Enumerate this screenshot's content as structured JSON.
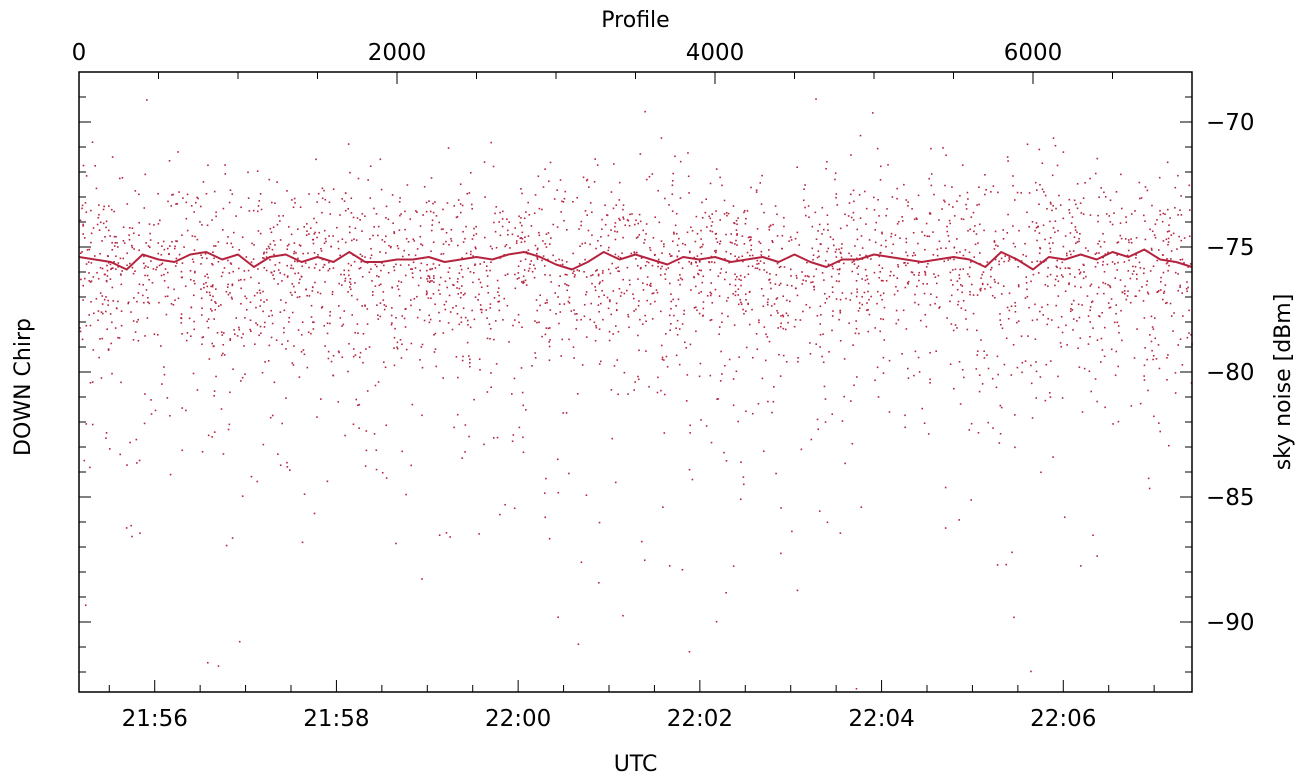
{
  "chart_data": {
    "type": "scatter",
    "title": "",
    "left_label": "DOWN Chirp",
    "xlabel": "UTC",
    "x2label": "Profile",
    "ylabel": "sky noise [dBm]",
    "xlim": [
      "21:55:10",
      "22:07:25"
    ],
    "x2lim": [
      0,
      7000
    ],
    "ylim": [
      -92.8,
      -68.0
    ],
    "x_ticks": [
      "21:56",
      "21:58",
      "22:00",
      "22:02",
      "22:04",
      "22:06"
    ],
    "x2_ticks": [
      0,
      2000,
      4000,
      6000
    ],
    "y_ticks": [
      -70,
      -75,
      -80,
      -85,
      -90
    ],
    "grid": false,
    "colors": {
      "series": "#b5243f",
      "axes": "#000000"
    },
    "series": [
      {
        "kind": "points",
        "distribution": {
          "center": -75.5,
          "upper_bound": -69.0,
          "lower_bound": -92.8
        }
      },
      {
        "kind": "smoothed-line",
        "x_profile": [
          0,
          100,
          200,
          300,
          400,
          500,
          600,
          700,
          800,
          900,
          1000,
          1100,
          1200,
          1300,
          1400,
          1500,
          1600,
          1700,
          1800,
          1900,
          2000,
          2100,
          2200,
          2300,
          2400,
          2500,
          2600,
          2700,
          2800,
          2900,
          3000,
          3100,
          3200,
          3300,
          3400,
          3500,
          3600,
          3700,
          3800,
          3900,
          4000,
          4100,
          4200,
          4300,
          4400,
          4500,
          4600,
          4700,
          4800,
          4900,
          5000,
          5100,
          5200,
          5300,
          5400,
          5500,
          5600,
          5700,
          5800,
          5900,
          6000,
          6100,
          6200,
          6300,
          6400,
          6500,
          6600,
          6700,
          6800,
          6900,
          7000
        ],
        "y": [
          -75.4,
          -75.5,
          -75.6,
          -75.9,
          -75.3,
          -75.5,
          -75.6,
          -75.3,
          -75.2,
          -75.5,
          -75.3,
          -75.8,
          -75.4,
          -75.3,
          -75.6,
          -75.4,
          -75.6,
          -75.2,
          -75.6,
          -75.6,
          -75.5,
          -75.5,
          -75.4,
          -75.6,
          -75.5,
          -75.4,
          -75.5,
          -75.3,
          -75.2,
          -75.4,
          -75.7,
          -75.9,
          -75.6,
          -75.2,
          -75.5,
          -75.3,
          -75.5,
          -75.7,
          -75.4,
          -75.5,
          -75.4,
          -75.6,
          -75.5,
          -75.4,
          -75.6,
          -75.3,
          -75.6,
          -75.8,
          -75.5,
          -75.5,
          -75.3,
          -75.4,
          -75.5,
          -75.6,
          -75.5,
          -75.4,
          -75.5,
          -75.8,
          -75.2,
          -75.5,
          -75.9,
          -75.4,
          -75.5,
          -75.3,
          -75.5,
          -75.2,
          -75.4,
          -75.1,
          -75.5,
          -75.6,
          -75.8
        ]
      }
    ]
  }
}
